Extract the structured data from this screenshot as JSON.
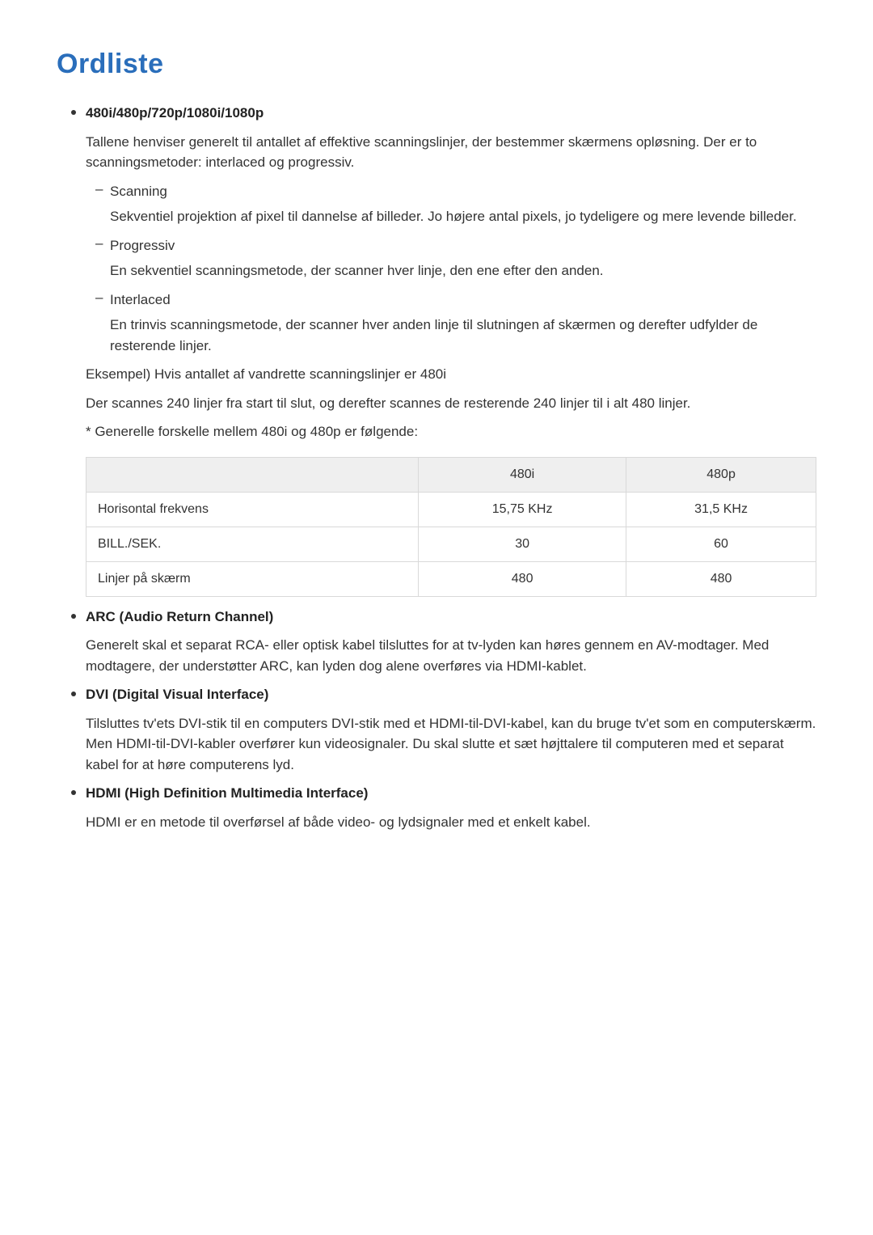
{
  "title": "Ordliste",
  "colors": {
    "title": "#2a6ebb",
    "text": "#333333",
    "table_header_bg": "#efefef",
    "table_border": "#d9d9d9",
    "background": "#ffffff"
  },
  "typography": {
    "title_fontsize": 34,
    "body_fontsize": 17,
    "table_fontsize": 16,
    "font_family": "Segoe UI, Arial, sans-serif"
  },
  "items": [
    {
      "term": "480i/480p/720p/1080i/1080p",
      "intro": "Tallene henviser generelt til antallet af effektive scanningslinjer, der bestemmer skærmens opløsning. Der er to scanningsmetoder: interlaced og progressiv.",
      "subitems": [
        {
          "name": "Scanning",
          "desc": "Sekventiel projektion af pixel til dannelse af billeder. Jo højere antal pixels, jo tydeligere og mere levende billeder."
        },
        {
          "name": "Progressiv",
          "desc": "En sekventiel scanningsmetode, der scanner hver linje, den ene efter den anden."
        },
        {
          "name": "Interlaced",
          "desc": "En trinvis scanningsmetode, der scanner hver anden linje til slutningen af skærmen og derefter udfylder de resterende linjer."
        }
      ],
      "example_label": "Eksempel) Hvis antallet af vandrette scanningslinjer er 480i",
      "example_body": "Der scannes 240 linjer fra start til slut, og derefter scannes de resterende 240 linjer til i alt 480 linjer.",
      "note": "* Generelle forskelle mellem 480i og 480p er følgende:"
    },
    {
      "term": "ARC (Audio Return Channel)",
      "intro": "Generelt skal et separat RCA- eller optisk kabel tilsluttes for at tv-lyden kan høres gennem en AV-modtager. Med modtagere, der understøtter ARC, kan lyden dog alene overføres via HDMI-kablet."
    },
    {
      "term": "DVI (Digital Visual Interface)",
      "intro": "Tilsluttes tv'ets DVI-stik til en computers DVI-stik med et HDMI-til-DVI-kabel, kan du bruge tv'et som en computerskærm. Men HDMI-til-DVI-kabler overfører kun videosignaler. Du skal slutte et sæt højttalere til computeren med et separat kabel for at høre computerens lyd."
    },
    {
      "term": "HDMI (High Definition Multimedia Interface)",
      "intro": "HDMI er en metode til overførsel af både video- og lydsignaler med et enkelt kabel."
    }
  ],
  "table": {
    "type": "table",
    "columns": [
      "",
      "480i",
      "480p"
    ],
    "rows": [
      [
        "Horisontal frekvens",
        "15,75 KHz",
        "31,5 KHz"
      ],
      [
        "BILL./SEK.",
        "30",
        "60"
      ],
      [
        "Linjer på skærm",
        "480",
        "480"
      ]
    ]
  }
}
